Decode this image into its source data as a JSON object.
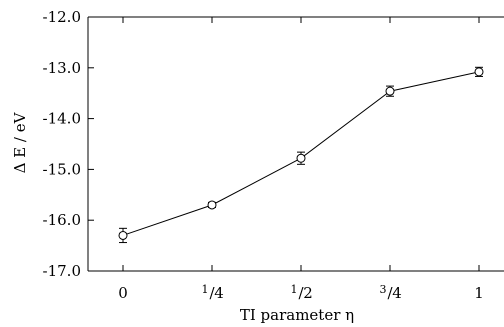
{
  "chart_data": {
    "type": "line",
    "xlabel": "TI parameter η",
    "ylabel": "Δ E / eV",
    "ylim": [
      -17.0,
      -12.0
    ],
    "yticks": [
      {
        "value": -12.0,
        "label": "-12.0"
      },
      {
        "value": -13.0,
        "label": "-13.0"
      },
      {
        "value": -14.0,
        "label": "-14.0"
      },
      {
        "value": -15.0,
        "label": "-15.0"
      },
      {
        "value": -16.0,
        "label": "-16.0"
      },
      {
        "value": -17.0,
        "label": "-17.0"
      }
    ],
    "xticks": [
      {
        "value": 0,
        "num": "0",
        "den": ""
      },
      {
        "value": 0.25,
        "num": "1",
        "den": "4"
      },
      {
        "value": 0.5,
        "num": "1",
        "den": "2"
      },
      {
        "value": 0.75,
        "num": "3",
        "den": "4"
      },
      {
        "value": 1,
        "num": "1",
        "den": ""
      }
    ],
    "series": [
      {
        "x": [
          0,
          0.25,
          0.5,
          0.75,
          1
        ],
        "y": [
          -16.3,
          -15.7,
          -14.78,
          -13.46,
          -13.08
        ],
        "yerr": [
          0.14,
          0.05,
          0.12,
          0.1,
          0.09
        ]
      }
    ],
    "marker": "open-circle",
    "grid": false
  }
}
